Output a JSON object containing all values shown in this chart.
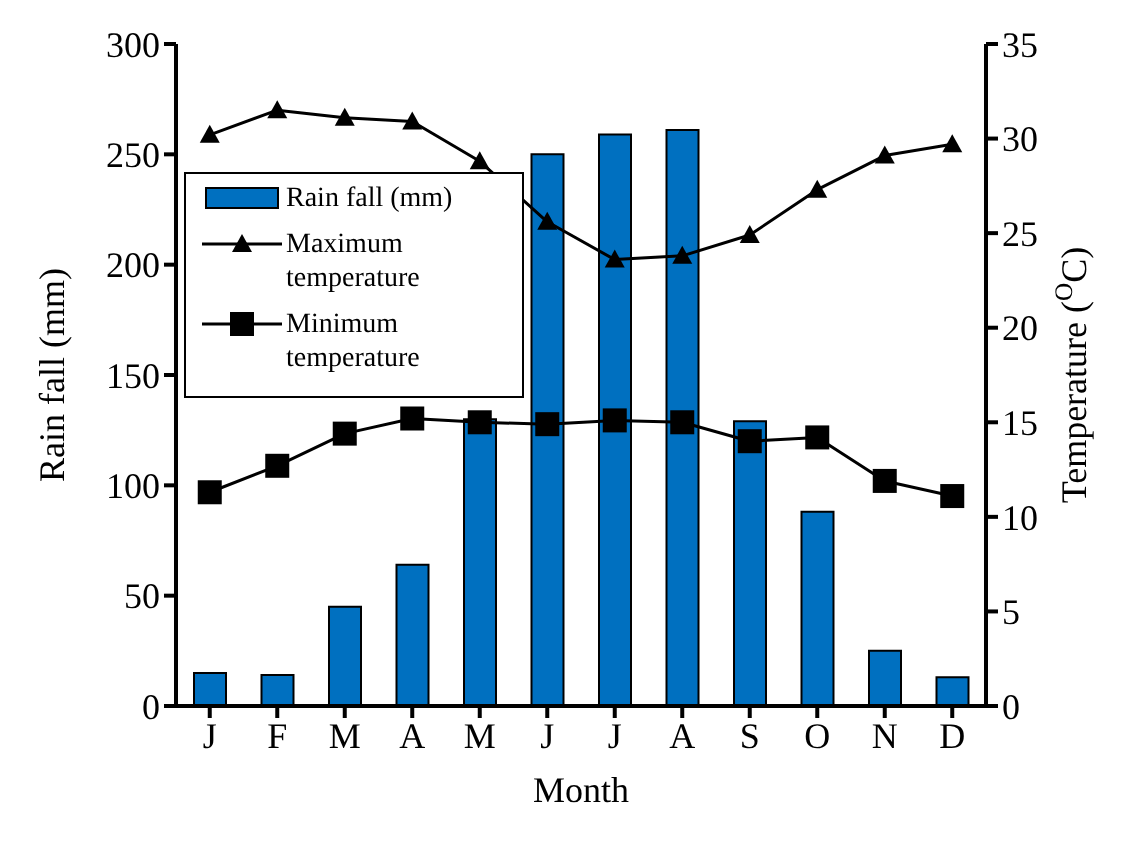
{
  "chart_data": {
    "type": "bar",
    "xlabel": "Month",
    "ylabel": "Rain fall (mm)",
    "y2label": "Temperature ($^{O}$C)",
    "categories": [
      "J",
      "F",
      "M",
      "A",
      "M",
      "J",
      "J",
      "A",
      "S",
      "O",
      "N",
      "D"
    ],
    "series": [
      {
        "name": "Rain fall (mm)",
        "color": "#0070c0",
        "values": [
          15,
          14,
          45,
          64,
          130,
          250,
          259,
          261,
          129,
          88,
          25,
          13
        ]
      },
      {
        "name": "Maximum temperature",
        "type": "line",
        "axis": "y2",
        "marker": "triangle",
        "color": "#000000",
        "values": [
          30.2,
          31.5,
          31.1,
          30.9,
          28.8,
          25.6,
          23.6,
          23.8,
          24.9,
          27.3,
          29.1,
          29.7
        ]
      },
      {
        "name": "Minimum temperature",
        "type": "line",
        "axis": "y2",
        "marker": "square",
        "color": "#000000",
        "values": [
          11.3,
          12.7,
          14.4,
          15.2,
          15.0,
          14.9,
          15.1,
          15.0,
          14.0,
          14.2,
          11.9,
          11.1
        ]
      }
    ],
    "ylim": [
      0,
      300
    ],
    "yticks": [
      0,
      50,
      100,
      150,
      200,
      250,
      300
    ],
    "y2lim": [
      0,
      35
    ],
    "y2ticks": [
      0,
      5,
      10,
      15,
      20,
      25,
      30,
      35
    ],
    "grid": false,
    "legend": "left"
  }
}
